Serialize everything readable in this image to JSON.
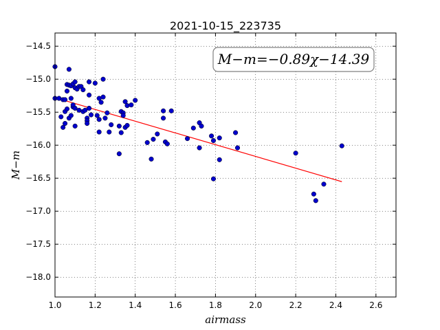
{
  "chart_data": {
    "type": "scatter",
    "title": "2021-10-15_223735",
    "xlabel": "airmass",
    "ylabel": "M−m",
    "xlim": [
      1.0,
      2.7
    ],
    "ylim": [
      -18.3,
      -14.3
    ],
    "xticks": [
      1.0,
      1.2,
      1.4,
      1.6,
      1.8,
      2.0,
      2.2,
      2.4,
      2.6
    ],
    "xtick_labels": [
      "1.0",
      "1.2",
      "1.4",
      "1.6",
      "1.8",
      "2.0",
      "2.2",
      "2.4",
      "2.6"
    ],
    "yticks": [
      -14.5,
      -15.0,
      -15.5,
      -16.0,
      -16.5,
      -17.0,
      -17.5,
      -18.0
    ],
    "ytick_labels": [
      "−14.5",
      "−15.0",
      "−15.5",
      "−16.0",
      "−16.5",
      "−17.0",
      "−17.5",
      "−18.0"
    ],
    "grid": true,
    "annotation": "M−m=−0.89χ−14.39",
    "fit": {
      "slope": -0.89,
      "intercept": -14.39,
      "x_range": [
        1.05,
        2.43
      ],
      "color": "#ff0000"
    },
    "point_color": "#0000cc",
    "points": [
      [
        1.0,
        -14.81
      ],
      [
        1.0,
        -15.29
      ],
      [
        1.02,
        -15.29
      ],
      [
        1.03,
        -15.57
      ],
      [
        1.04,
        -15.31
      ],
      [
        1.04,
        -15.73
      ],
      [
        1.05,
        -15.31
      ],
      [
        1.05,
        -15.67
      ],
      [
        1.05,
        -15.49
      ],
      [
        1.06,
        -15.18
      ],
      [
        1.06,
        -15.45
      ],
      [
        1.06,
        -15.08
      ],
      [
        1.07,
        -14.85
      ],
      [
        1.07,
        -15.09
      ],
      [
        1.07,
        -15.59
      ],
      [
        1.08,
        -15.29
      ],
      [
        1.08,
        -15.1
      ],
      [
        1.08,
        -15.55
      ],
      [
        1.09,
        -15.07
      ],
      [
        1.09,
        -15.42
      ],
      [
        1.09,
        -15.39
      ],
      [
        1.1,
        -15.04
      ],
      [
        1.1,
        -15.44
      ],
      [
        1.1,
        -15.13
      ],
      [
        1.1,
        -15.71
      ],
      [
        1.11,
        -15.15
      ],
      [
        1.12,
        -15.47
      ],
      [
        1.12,
        -15.11
      ],
      [
        1.13,
        -15.11
      ],
      [
        1.14,
        -15.49
      ],
      [
        1.14,
        -15.16
      ],
      [
        1.15,
        -15.47
      ],
      [
        1.16,
        -15.59
      ],
      [
        1.16,
        -15.63
      ],
      [
        1.16,
        -15.67
      ],
      [
        1.17,
        -15.04
      ],
      [
        1.17,
        -15.24
      ],
      [
        1.17,
        -15.44
      ],
      [
        1.18,
        -15.54
      ],
      [
        1.2,
        -15.06
      ],
      [
        1.21,
        -15.55
      ],
      [
        1.22,
        -15.61
      ],
      [
        1.22,
        -15.29
      ],
      [
        1.22,
        -15.8
      ],
      [
        1.23,
        -15.35
      ],
      [
        1.24,
        -15.0
      ],
      [
        1.24,
        -15.27
      ],
      [
        1.25,
        -15.59
      ],
      [
        1.26,
        -15.51
      ],
      [
        1.27,
        -15.8
      ],
      [
        1.28,
        -15.69
      ],
      [
        1.32,
        -15.71
      ],
      [
        1.32,
        -16.13
      ],
      [
        1.33,
        -15.49
      ],
      [
        1.33,
        -15.81
      ],
      [
        1.34,
        -15.51
      ],
      [
        1.34,
        -15.55
      ],
      [
        1.35,
        -15.34
      ],
      [
        1.35,
        -15.73
      ],
      [
        1.36,
        -15.7
      ],
      [
        1.36,
        -15.4
      ],
      [
        1.38,
        -15.39
      ],
      [
        1.4,
        -15.32
      ],
      [
        1.46,
        -15.96
      ],
      [
        1.48,
        -16.21
      ],
      [
        1.49,
        -15.91
      ],
      [
        1.51,
        -15.83
      ],
      [
        1.54,
        -15.48
      ],
      [
        1.54,
        -15.59
      ],
      [
        1.55,
        -15.95
      ],
      [
        1.56,
        -15.98
      ],
      [
        1.58,
        -15.48
      ],
      [
        1.66,
        -15.9
      ],
      [
        1.69,
        -15.74
      ],
      [
        1.72,
        -15.66
      ],
      [
        1.72,
        -16.04
      ],
      [
        1.73,
        -15.71
      ],
      [
        1.78,
        -15.86
      ],
      [
        1.79,
        -15.93
      ],
      [
        1.79,
        -16.51
      ],
      [
        1.82,
        -16.22
      ],
      [
        1.82,
        -15.89
      ],
      [
        1.9,
        -15.81
      ],
      [
        1.91,
        -16.04
      ],
      [
        2.2,
        -16.12
      ],
      [
        2.29,
        -16.74
      ],
      [
        2.3,
        -16.84
      ],
      [
        2.34,
        -16.59
      ],
      [
        2.43,
        -16.01
      ]
    ]
  }
}
